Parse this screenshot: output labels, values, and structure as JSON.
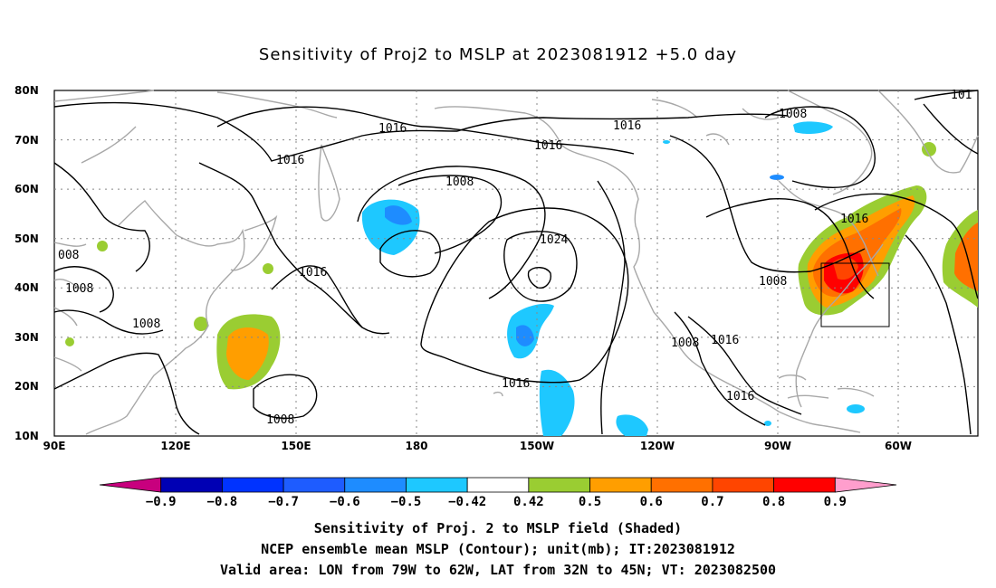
{
  "title": "Sensitivity of Proj2 to MSLP at 2023081912 +5.0 day",
  "axes": {
    "lat_labels": [
      "80N",
      "70N",
      "60N",
      "50N",
      "40N",
      "30N",
      "20N",
      "10N"
    ],
    "lon_labels": [
      "90E",
      "120E",
      "150E",
      "180",
      "150W",
      "120W",
      "90W",
      "60W"
    ]
  },
  "contour_labels": [
    {
      "text": "1016"
    },
    {
      "text": "1016"
    },
    {
      "text": "1016"
    },
    {
      "text": "1016"
    },
    {
      "text": "1008"
    },
    {
      "text": "1008"
    },
    {
      "text": "1024"
    },
    {
      "text": "1016"
    },
    {
      "text": "1008"
    },
    {
      "text": "008"
    },
    {
      "text": "1008"
    },
    {
      "text": "1008"
    },
    {
      "text": "1016"
    },
    {
      "text": "1008"
    },
    {
      "text": "1016"
    },
    {
      "text": "1016"
    },
    {
      "text": "1008"
    },
    {
      "text": "1016"
    },
    {
      "text": "101"
    }
  ],
  "colorbar": {
    "labels": [
      "-0.9",
      "-0.8",
      "-0.7",
      "-0.6",
      "-0.5",
      "-0.42",
      "0.42",
      "0.5",
      "0.6",
      "0.7",
      "0.8",
      "0.9"
    ],
    "colors": [
      "#c8007e",
      "#0000b4",
      "#0033ff",
      "#1e5cff",
      "#1e8cff",
      "#1ec8ff",
      "#ffffff",
      "#9acd32",
      "#ff9e00",
      "#ff7000",
      "#ff4500",
      "#ff0000",
      "#ff9ecd"
    ]
  },
  "captions": {
    "line1": "Sensitivity of Proj. 2 to MSLP field (Shaded)",
    "line2": "NCEP ensemble mean MSLP (Contour); unit(mb); IT:2023081912",
    "line3": "Valid area: LON from 79W to 62W, LAT from 32N to 45N; VT: 2023082500"
  },
  "colors": {
    "coast": "#a8a8a8",
    "grid": "#888888",
    "contour": "#000000"
  }
}
